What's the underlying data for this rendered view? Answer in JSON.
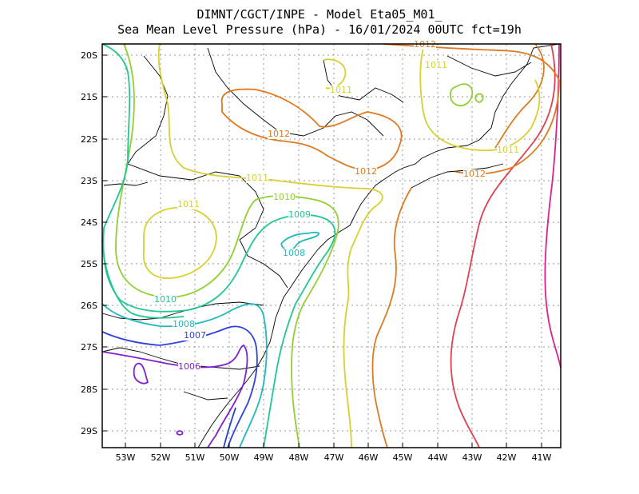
{
  "title_line1": "DIMNT/CGCT/INPE -  Model Eta05_M01_",
  "title_line2": "Sea Mean Level Pressure (hPa) - 16/01/2024 00UTC fct=19h",
  "lat_ticks": [
    "20S",
    "21S",
    "22S",
    "23S",
    "24S",
    "25S",
    "26S",
    "27S",
    "28S",
    "29S"
  ],
  "lon_ticks": [
    "53W",
    "52W",
    "51W",
    "50W",
    "49W",
    "48W",
    "47W",
    "46W",
    "45W",
    "44W",
    "43W",
    "42W",
    "41W"
  ],
  "contour_labels": [
    {
      "id": "l1012a",
      "text": "1012",
      "color": "#e07a20"
    },
    {
      "id": "l1011a",
      "text": "1011",
      "color": "#d8d030"
    },
    {
      "id": "l1011b",
      "text": "1011",
      "color": "#d8d030"
    },
    {
      "id": "l1012b",
      "text": "1012",
      "color": "#e07a20"
    },
    {
      "id": "l1012c",
      "text": "1012",
      "color": "#e07a20"
    },
    {
      "id": "l1011c",
      "text": "1011",
      "color": "#d8d030"
    },
    {
      "id": "l1012d",
      "text": "1012",
      "color": "#e07a20"
    },
    {
      "id": "l1011d",
      "text": "1011",
      "color": "#d8d030"
    },
    {
      "id": "l1011e",
      "text": "1011",
      "color": "#d8d030"
    },
    {
      "id": "l1010a",
      "text": "1010",
      "color": "#90d030"
    },
    {
      "id": "l1009",
      "text": "1009",
      "color": "#20c890"
    },
    {
      "id": "l1008a",
      "text": "1008",
      "color": "#20b8c0"
    },
    {
      "id": "l1010b",
      "text": "1010",
      "color": "#20c890"
    },
    {
      "id": "l1008b",
      "text": "1008",
      "color": "#20b8c0"
    },
    {
      "id": "l1007",
      "text": "1007",
      "color": "#3040e0"
    },
    {
      "id": "l1006",
      "text": "1006",
      "color": "#8020d0"
    }
  ]
}
